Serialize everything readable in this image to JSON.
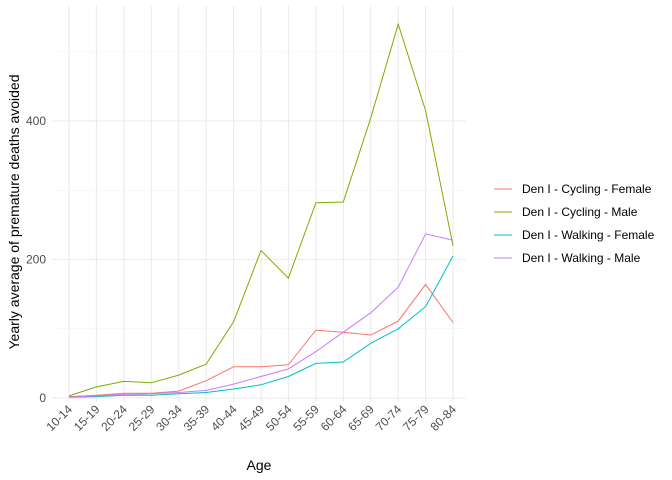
{
  "chart_data": {
    "type": "line",
    "xlabel": "Age",
    "ylabel": "Yearly average of premature deaths avoided",
    "ylim": [
      0,
      540
    ],
    "yticks": [
      0,
      200,
      400
    ],
    "grid": true,
    "legend_position": "right",
    "categories": [
      "10-14",
      "15-19",
      "20-24",
      "25-29",
      "30-34",
      "35-39",
      "40-44",
      "45-49",
      "50-54",
      "55-59",
      "60-64",
      "65-69",
      "70-74",
      "75-79",
      "80-84"
    ],
    "series": [
      {
        "name": "Den I - Cycling - Female",
        "color": "#f8766d",
        "values": [
          2,
          4,
          7,
          7,
          10,
          25,
          45,
          45,
          48,
          98,
          95,
          91,
          111,
          164,
          109
        ]
      },
      {
        "name": "Den I - Cycling - Male",
        "color": "#7cae00",
        "values": [
          3,
          16,
          24,
          22,
          33,
          49,
          110,
          213,
          173,
          282,
          283,
          404,
          540,
          415,
          220
        ]
      },
      {
        "name": "Den I - Walking - Female",
        "color": "#00bfc4",
        "values": [
          1,
          2,
          4,
          4,
          6,
          8,
          13,
          19,
          31,
          50,
          52,
          79,
          100,
          132,
          205
        ]
      },
      {
        "name": "Den I - Walking - Male",
        "color": "#c77cff",
        "values": [
          1,
          3,
          5,
          6,
          8,
          11,
          20,
          31,
          42,
          67,
          95,
          123,
          160,
          237,
          228
        ]
      }
    ]
  }
}
